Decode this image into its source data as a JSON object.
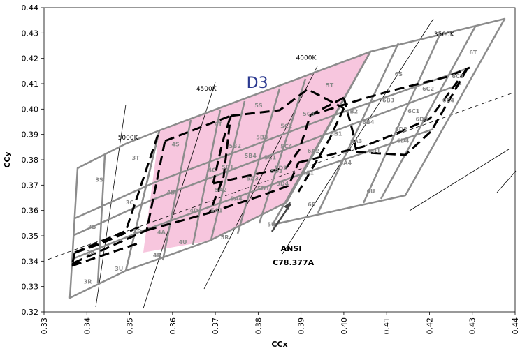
{
  "chart_data": {
    "type": "scatter",
    "xlabel": "CCx",
    "ylabel": "CCy",
    "xlim": [
      0.33,
      0.44
    ],
    "ylim": [
      0.32,
      0.44
    ],
    "x_ticks": [
      "0.33",
      "0.34",
      "0.35",
      "0.36",
      "0.37",
      "0.38",
      "0.39",
      "0.40",
      "0.41",
      "0.42",
      "0.43",
      "0.44"
    ],
    "y_ticks": [
      "0.32",
      "0.33",
      "0.34",
      "0.35",
      "0.36",
      "0.37",
      "0.38",
      "0.39",
      "0.40",
      "0.41",
      "0.42",
      "0.43",
      "0.44"
    ],
    "grid": false,
    "colors": {
      "bin_edge": "#8c8c8c",
      "d3_fill": "#f7c6de",
      "ansi_dash": "#000000",
      "d3_label": "#2b3990"
    },
    "cct_labels": [
      {
        "text": "5000K",
        "x": 0.3496,
        "y": 0.3888
      },
      {
        "text": "4500K",
        "x": 0.3679,
        "y": 0.4081
      },
      {
        "text": "4000K",
        "x": 0.3912,
        "y": 0.4203
      },
      {
        "text": "3500K",
        "x": 0.4234,
        "y": 0.4295
      }
    ],
    "annotations": [
      {
        "text": "D3",
        "x": 0.3798,
        "y": 0.4105
      },
      {
        "text": "ANSI",
        "x": 0.3877,
        "y": 0.345
      },
      {
        "text": "C78.377A",
        "x": 0.3882,
        "y": 0.3396
      }
    ],
    "bins": [
      {
        "label": "3S",
        "x": 0.3429,
        "y": 0.3722
      },
      {
        "label": "3T",
        "x": 0.3514,
        "y": 0.3808
      },
      {
        "label": "3B",
        "x": 0.3412,
        "y": 0.3536
      },
      {
        "label": "3C",
        "x": 0.35,
        "y": 0.3632
      },
      {
        "label": "3A",
        "x": 0.3409,
        "y": 0.3434
      },
      {
        "label": "3D",
        "x": 0.3518,
        "y": 0.3519
      },
      {
        "label": "3R",
        "x": 0.3402,
        "y": 0.332
      },
      {
        "label": "3U",
        "x": 0.3475,
        "y": 0.3371
      },
      {
        "label": "4S",
        "x": 0.3607,
        "y": 0.3862
      },
      {
        "label": "4T",
        "x": 0.3707,
        "y": 0.3942
      },
      {
        "label": "4B",
        "x": 0.3596,
        "y": 0.3672
      },
      {
        "label": "4C",
        "x": 0.3692,
        "y": 0.376
      },
      {
        "label": "4A",
        "x": 0.3574,
        "y": 0.3515
      },
      {
        "label": "4D",
        "x": 0.365,
        "y": 0.36
      },
      {
        "label": "4R",
        "x": 0.3564,
        "y": 0.3425
      },
      {
        "label": "4U",
        "x": 0.3624,
        "y": 0.3475
      },
      {
        "label": "5B2",
        "x": 0.3746,
        "y": 0.3855
      },
      {
        "label": "5B1",
        "x": 0.3729,
        "y": 0.3771
      },
      {
        "label": "5B3",
        "x": 0.3809,
        "y": 0.3889
      },
      {
        "label": "5B4",
        "x": 0.3782,
        "y": 0.3817
      },
      {
        "label": "5A2",
        "x": 0.3713,
        "y": 0.3682
      },
      {
        "label": "5A1",
        "x": 0.3703,
        "y": 0.3601
      },
      {
        "label": "5A3",
        "x": 0.3787,
        "y": 0.3727
      },
      {
        "label": "5A4",
        "x": 0.3749,
        "y": 0.3647
      },
      {
        "label": "5S",
        "x": 0.3801,
        "y": 0.4015
      },
      {
        "label": "5T",
        "x": 0.3967,
        "y": 0.4094
      },
      {
        "label": "5C3",
        "x": 0.3918,
        "y": 0.3981
      },
      {
        "label": "5C2",
        "x": 0.3866,
        "y": 0.3933
      },
      {
        "label": "5C4",
        "x": 0.3866,
        "y": 0.3854
      },
      {
        "label": "5C1",
        "x": 0.3828,
        "y": 0.381
      },
      {
        "label": "5D3",
        "x": 0.3843,
        "y": 0.3756
      },
      {
        "label": "5D2",
        "x": 0.3853,
        "y": 0.3769
      },
      {
        "label": "5D1",
        "x": 0.3812,
        "y": 0.3687
      },
      {
        "label": "5D4",
        "x": 0.3857,
        "y": 0.3707
      },
      {
        "label": "5R",
        "x": 0.3722,
        "y": 0.3494
      },
      {
        "label": "5U",
        "x": 0.3831,
        "y": 0.3545
      },
      {
        "label": "6S",
        "x": 0.4128,
        "y": 0.4139
      },
      {
        "label": "6T",
        "x": 0.4302,
        "y": 0.4224
      },
      {
        "label": "6B2",
        "x": 0.4019,
        "y": 0.3991
      },
      {
        "label": "6B3",
        "x": 0.4104,
        "y": 0.4035
      },
      {
        "label": "6C2",
        "x": 0.4197,
        "y": 0.4081
      },
      {
        "label": "6C3",
        "x": 0.4266,
        "y": 0.413
      },
      {
        "label": "6B1",
        "x": 0.3982,
        "y": 0.3903
      },
      {
        "label": "6B4",
        "x": 0.4057,
        "y": 0.3949
      },
      {
        "label": "6C1",
        "x": 0.4163,
        "y": 0.3992
      },
      {
        "label": "6C4",
        "x": 0.4244,
        "y": 0.4036
      },
      {
        "label": "6A2",
        "x": 0.3929,
        "y": 0.3836
      },
      {
        "label": "6A3",
        "x": 0.4029,
        "y": 0.3874
      },
      {
        "label": "6D2",
        "x": 0.4134,
        "y": 0.3921
      },
      {
        "label": "6D3",
        "x": 0.4182,
        "y": 0.3961
      },
      {
        "label": "6A1",
        "x": 0.3916,
        "y": 0.3749
      },
      {
        "label": "6A4",
        "x": 0.4004,
        "y": 0.3789
      },
      {
        "label": "6D1",
        "x": 0.4071,
        "y": 0.3836
      },
      {
        "label": "6D4",
        "x": 0.4138,
        "y": 0.3876
      },
      {
        "label": "6R",
        "x": 0.3925,
        "y": 0.3624
      },
      {
        "label": "6U",
        "x": 0.4063,
        "y": 0.3676
      }
    ]
  }
}
